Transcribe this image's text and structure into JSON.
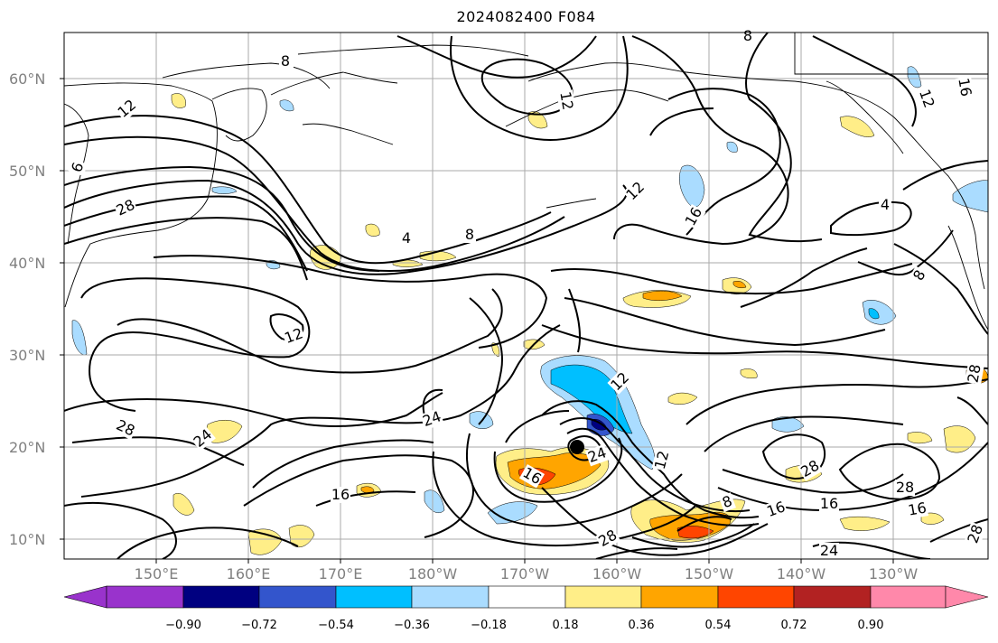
{
  "title": "2024082400 F084",
  "lat_labels": [
    "60°N",
    "50°N",
    "40°N",
    "30°N",
    "20°N",
    "10°N"
  ],
  "lon_labels": [
    "150°E",
    "160°E",
    "170°E",
    "180°W",
    "170°W",
    "160°W",
    "150°W",
    "140°W",
    "130°W"
  ],
  "colorbar": {
    "colors": [
      "#9933cc",
      "#000080",
      "#3355cc",
      "#00bfff",
      "#aadcff",
      "#ffffff",
      "#ffee88",
      "#ffa500",
      "#ff4500",
      "#b22222",
      "#ff88aa"
    ],
    "tick_labels": [
      "−0.90",
      "−0.72",
      "−0.54",
      "−0.36",
      "−0.18",
      "0.18",
      "0.36",
      "0.54",
      "0.72",
      "0.90"
    ],
    "extend": "both"
  },
  "contour_labels": [
    "8",
    "12",
    "6",
    "28",
    "4",
    "8",
    "12",
    "12",
    "16",
    "8",
    "16",
    "12",
    "4",
    "8",
    "12",
    "28",
    "24",
    "12",
    "24",
    "16",
    "16",
    "24",
    "12",
    "16",
    "8",
    "28",
    "16",
    "28",
    "28",
    "24",
    "28",
    "16",
    "28"
  ],
  "storm_marker": "tropical cyclone center",
  "map": {
    "projection": "cylindrical",
    "lon_range": [
      "140°E",
      "120°W"
    ],
    "lat_range": [
      "8°N",
      "65°N"
    ],
    "gridlines": true
  }
}
